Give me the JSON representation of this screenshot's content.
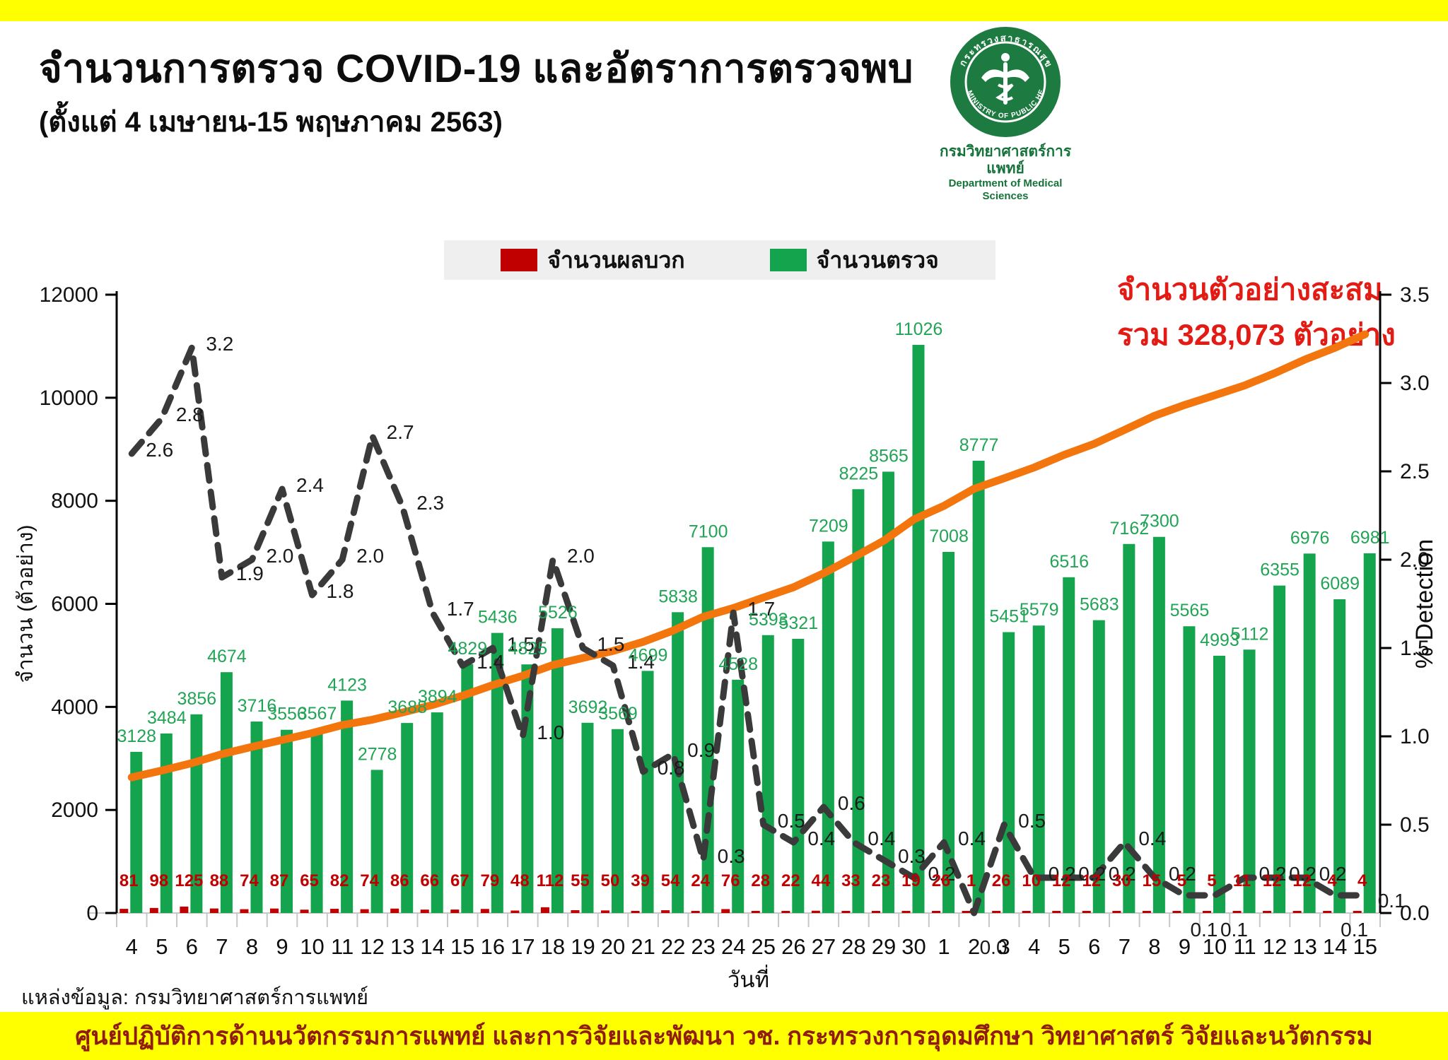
{
  "page": {
    "title": "จำนวนการตรวจ COVID-19 และอัตราการตรวจพบ",
    "subtitle": "(ตั้งแต่ 4 เมษายน-15 พฤษภาคม 2563)",
    "source": "แหล่งข้อมูล: กรมวิทยาศาสตร์การแพทย์",
    "footer": "ศูนย์ปฏิบัติการด้านนวัตกรรมการแพทย์ และการวิจัยและพัฒนา    วช.    กระทรวงการอุดมศึกษา วิทยาศาสตร์ วิจัยและนวัตกรรม"
  },
  "logo": {
    "seal_text_top": "กระทรวงสาธารณสุข",
    "seal_text_bottom": "MINISTRY OF PUBLIC HEALTH",
    "org_thai": "กรมวิทยาศาสตร์การแพทย์",
    "org_english": "Department of Medical Sciences"
  },
  "legend": [
    {
      "label": "จำนวนผลบวก",
      "color": "#c00000"
    },
    {
      "label": "จำนวนตรวจ",
      "color": "#14a44d"
    }
  ],
  "annotation": {
    "line1": "จำนวนตัวอย่างสะสม",
    "line2": "รวม 328,073 ตัวอย่าง",
    "cumulative_total": "328,073"
  },
  "chart_data": {
    "type": "bar",
    "x_axis_title": "วันที่",
    "y_left_label": "จำนวน (ตัวอย่าง)",
    "y_right_label": "% Detection",
    "y_left_ticks": [
      0,
      2000,
      4000,
      6000,
      8000,
      10000,
      12000
    ],
    "y_right_ticks": [
      0.0,
      0.5,
      1.0,
      1.5,
      2.0,
      2.5,
      3.0,
      3.5
    ],
    "y_left_range": [
      0,
      12000
    ],
    "y_right_range": [
      0,
      3.5
    ],
    "grid": false,
    "categories": [
      "4",
      "5",
      "6",
      "7",
      "8",
      "9",
      "10",
      "11",
      "12",
      "13",
      "14",
      "15",
      "16",
      "17",
      "18",
      "19",
      "20",
      "21",
      "22",
      "23",
      "24",
      "25",
      "26",
      "27",
      "28",
      "29",
      "30",
      "1",
      "2",
      "3",
      "4",
      "5",
      "6",
      "7",
      "8",
      "9",
      "10",
      "11",
      "12",
      "13",
      "14",
      "15"
    ],
    "series": [
      {
        "name": "จำนวนตรวจ",
        "type": "bar",
        "color": "#14a44d",
        "values": [
          3128,
          3484,
          3856,
          4674,
          3716,
          3556,
          3567,
          4123,
          2778,
          3688,
          3894,
          4829,
          5436,
          4825,
          5526,
          3692,
          3569,
          4699,
          5838,
          7100,
          4528,
          5393,
          5321,
          7209,
          8225,
          8565,
          11026,
          7008,
          8777,
          5451,
          5579,
          6516,
          5683,
          7162,
          7300,
          5565,
          4993,
          5112,
          6355,
          6976,
          6089,
          6981
        ]
      },
      {
        "name": "จำนวนผลบวก",
        "type": "bar",
        "color": "#c00000",
        "values": [
          81,
          98,
          125,
          88,
          74,
          87,
          65,
          82,
          74,
          86,
          66,
          67,
          79,
          48,
          112,
          55,
          50,
          39,
          54,
          24,
          76,
          28,
          22,
          44,
          33,
          23,
          19,
          26,
          1,
          26,
          10,
          12,
          12,
          30,
          15,
          5,
          5,
          11,
          12,
          12,
          4,
          4
        ]
      },
      {
        "name": "percent-detection",
        "type": "line-dashed",
        "color": "#3a3a3a",
        "values": [
          2.6,
          2.8,
          3.2,
          1.9,
          2.0,
          2.4,
          1.8,
          2.0,
          2.7,
          2.3,
          1.7,
          1.4,
          1.5,
          1.0,
          2.0,
          1.5,
          1.4,
          0.8,
          0.9,
          0.3,
          1.7,
          0.5,
          0.4,
          0.6,
          0.4,
          0.3,
          0.2,
          0.4,
          0.0,
          0.5,
          0.2,
          0.2,
          0.2,
          0.4,
          0.2,
          0.1,
          0.1,
          0.2,
          0.2,
          0.2,
          0.1,
          0.1
        ]
      },
      {
        "name": "cumulative-samples",
        "type": "line",
        "color": "#f2750d",
        "total_label": "328,073"
      }
    ]
  }
}
